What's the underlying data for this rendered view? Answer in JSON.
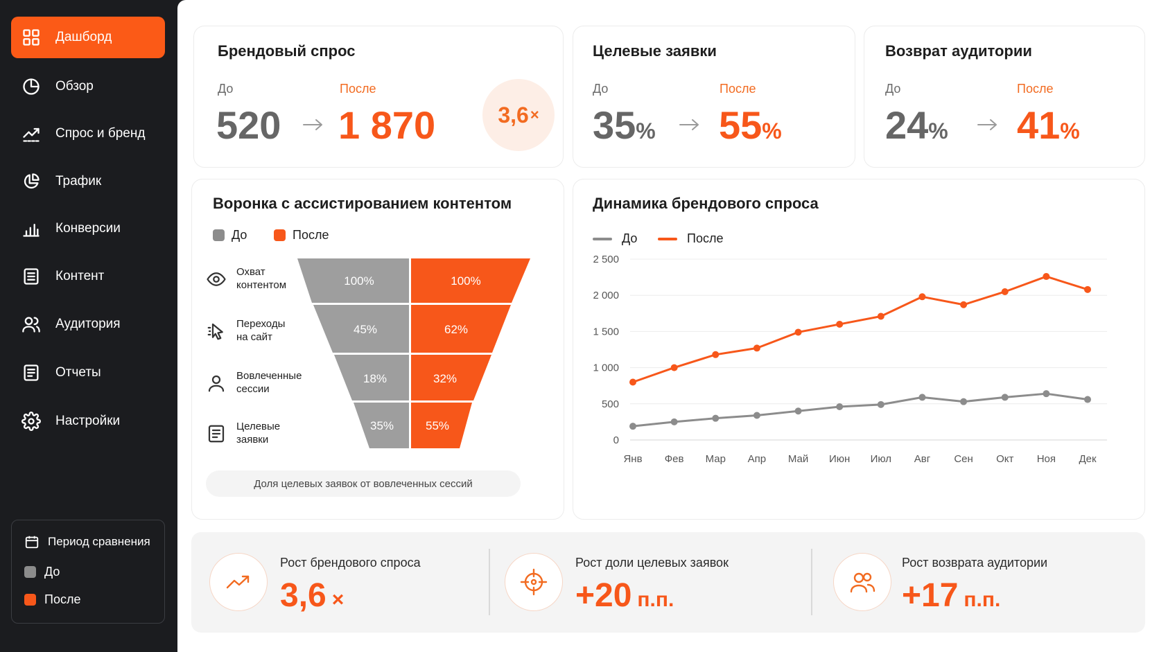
{
  "sidebar": {
    "items": [
      {
        "label": "Дашборд",
        "icon": "grid-icon"
      },
      {
        "label": "Обзор",
        "icon": "pie-icon"
      },
      {
        "label": "Спрос и бренд",
        "icon": "trend-icon"
      },
      {
        "label": "Трафик",
        "icon": "traffic-icon"
      },
      {
        "label": "Конверсии",
        "icon": "bar-chart-icon"
      },
      {
        "label": "Контент",
        "icon": "document-icon"
      },
      {
        "label": "Аудитория",
        "icon": "users-icon"
      },
      {
        "label": "Отчеты",
        "icon": "report-icon"
      },
      {
        "label": "Настройки",
        "icon": "gear-icon"
      }
    ],
    "period": {
      "title": "Период сравнения",
      "before": "До",
      "after": "После"
    }
  },
  "colors": {
    "accent": "#fb5a17",
    "before": "#8c8c8c",
    "after": "#f7571a",
    "sidebar_bg": "#1b1c1f"
  },
  "kpis": {
    "brand": {
      "title": "Брендовый спрос",
      "before_label": "До",
      "after_label": "После",
      "before_value": "520",
      "after_value": "1 870",
      "multiplier": "3,6",
      "multiplier_unit": "×"
    },
    "leads": {
      "title": "Целевые заявки",
      "before_label": "До",
      "after_label": "После",
      "before_value": "35",
      "after_value": "55",
      "unit": "%"
    },
    "return": {
      "title": "Возврат аудитории",
      "before_label": "До",
      "after_label": "После",
      "before_value": "24",
      "after_value": "41",
      "unit": "%"
    }
  },
  "funnel": {
    "title": "Воронка с ассистированием контентом",
    "legend_before": "До",
    "legend_after": "После",
    "stages": [
      {
        "label_1": "Охват",
        "label_2": "контентом",
        "icon": "eye-icon",
        "before": "100%",
        "after": "100%"
      },
      {
        "label_1": "Переходы",
        "label_2": "на сайт",
        "icon": "cursor-icon",
        "before": "45%",
        "after": "62%"
      },
      {
        "label_1": "Вовлеченные",
        "label_2": "сессии",
        "icon": "person-icon",
        "before": "18%",
        "after": "32%"
      },
      {
        "label_1": "Целевые",
        "label_2": "заявки",
        "icon": "form-icon",
        "before": "35%",
        "after": "55%"
      }
    ],
    "footnote": "Доля целевых заявок от вовлеченных сессий"
  },
  "dynamics": {
    "title": "Динамика брендового спроса",
    "legend_before": "До",
    "legend_after": "После"
  },
  "chart_data": {
    "type": "line",
    "title": "Динамика брендового спроса",
    "categories": [
      "Янв",
      "Фев",
      "Мар",
      "Апр",
      "Май",
      "Июн",
      "Июл",
      "Авг",
      "Сен",
      "Окт",
      "Ноя",
      "Дек"
    ],
    "series": [
      {
        "name": "До",
        "color": "#8c8c8c",
        "values": [
          190,
          250,
          300,
          340,
          400,
          460,
          490,
          590,
          530,
          590,
          640,
          560
        ]
      },
      {
        "name": "После",
        "color": "#f7571a",
        "values": [
          800,
          1000,
          1180,
          1270,
          1490,
          1600,
          1710,
          1980,
          1870,
          2050,
          2260,
          2080
        ]
      }
    ],
    "yticks": [
      "2 500",
      "2 000",
      "1 500",
      "1 000",
      "500",
      "0"
    ],
    "ylim": [
      0,
      2500
    ],
    "grid": true,
    "legend": "top-left"
  },
  "summary": [
    {
      "label": "Рост брендового спроса",
      "value": "3,6",
      "unit": "×",
      "icon": "trend-up-icon"
    },
    {
      "label": "Рост доли целевых заявок",
      "value": "+20",
      "unit": "п.п.",
      "icon": "target-icon"
    },
    {
      "label": "Рост возврата аудитории",
      "value": "+17",
      "unit": "п.п.",
      "icon": "audience-icon"
    }
  ]
}
